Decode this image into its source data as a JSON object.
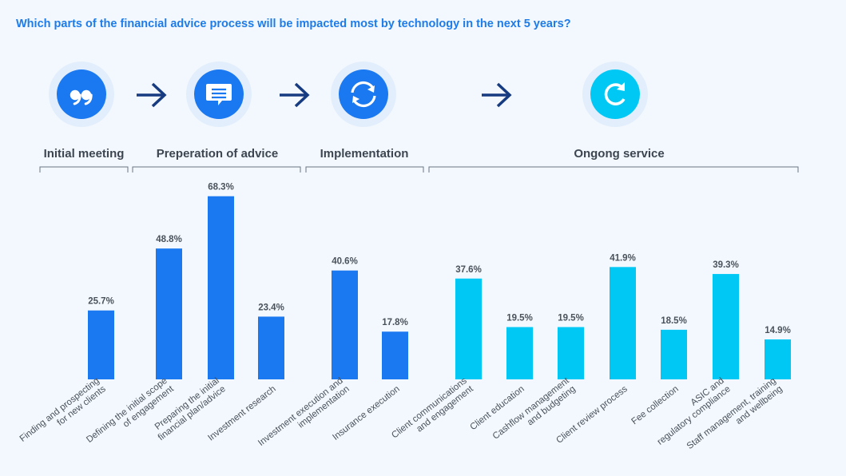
{
  "chart_data": {
    "type": "bar",
    "title": "Which parts of the financial advice process will be impacted most by technology in the next 5 years?",
    "unit": "%",
    "stages": [
      {
        "name": "Initial meeting",
        "icon": "quote-icon",
        "color": "#1a78f0"
      },
      {
        "name": "Preperation of advice",
        "icon": "chat-document-icon",
        "color": "#1a78f0"
      },
      {
        "name": "Implementation",
        "icon": "sync-arrows-icon",
        "color": "#1a78f0"
      },
      {
        "name": "Ongong service",
        "icon": "refresh-icon",
        "color": "#00c8f5"
      }
    ],
    "bars": [
      {
        "stage": 0,
        "category": [
          "Finding and prospecting",
          "for new clients"
        ],
        "value": 25.7,
        "label": "25.7%"
      },
      {
        "stage": 1,
        "category": [
          "Defining the initial scope",
          "of engagement"
        ],
        "value": 48.8,
        "label": "48.8%"
      },
      {
        "stage": 1,
        "category": [
          "Preparing the initial",
          "financial plan/advice"
        ],
        "value": 68.3,
        "label": "68.3%"
      },
      {
        "stage": 1,
        "category": [
          "Investment research"
        ],
        "value": 23.4,
        "label": "23.4%"
      },
      {
        "stage": 2,
        "category": [
          "Investment execution and",
          "implementation"
        ],
        "value": 40.6,
        "label": "40.6%"
      },
      {
        "stage": 2,
        "category": [
          "Insurance execution"
        ],
        "value": 17.8,
        "label": "17.8%"
      },
      {
        "stage": 3,
        "category": [
          "Client communications",
          "and engagement"
        ],
        "value": 37.6,
        "label": "37.6%"
      },
      {
        "stage": 3,
        "category": [
          "Client education"
        ],
        "value": 19.5,
        "label": "19.5%"
      },
      {
        "stage": 3,
        "category": [
          "Cashflow management",
          "and budgeting"
        ],
        "value": 19.5,
        "label": "19.5%"
      },
      {
        "stage": 3,
        "category": [
          "Client review process"
        ],
        "value": 41.9,
        "label": "41.9%"
      },
      {
        "stage": 3,
        "category": [
          "Fee collection"
        ],
        "value": 18.5,
        "label": "18.5%"
      },
      {
        "stage": 3,
        "category": [
          "ASIC and",
          "regulatory compliance"
        ],
        "value": 39.3,
        "label": "39.3%"
      },
      {
        "stage": 3,
        "category": [
          "Staff management, training",
          "and wellbeing"
        ],
        "value": 14.9,
        "label": "14.9%"
      }
    ],
    "ylim": [
      0,
      70
    ],
    "grid": false,
    "legend": "none"
  }
}
